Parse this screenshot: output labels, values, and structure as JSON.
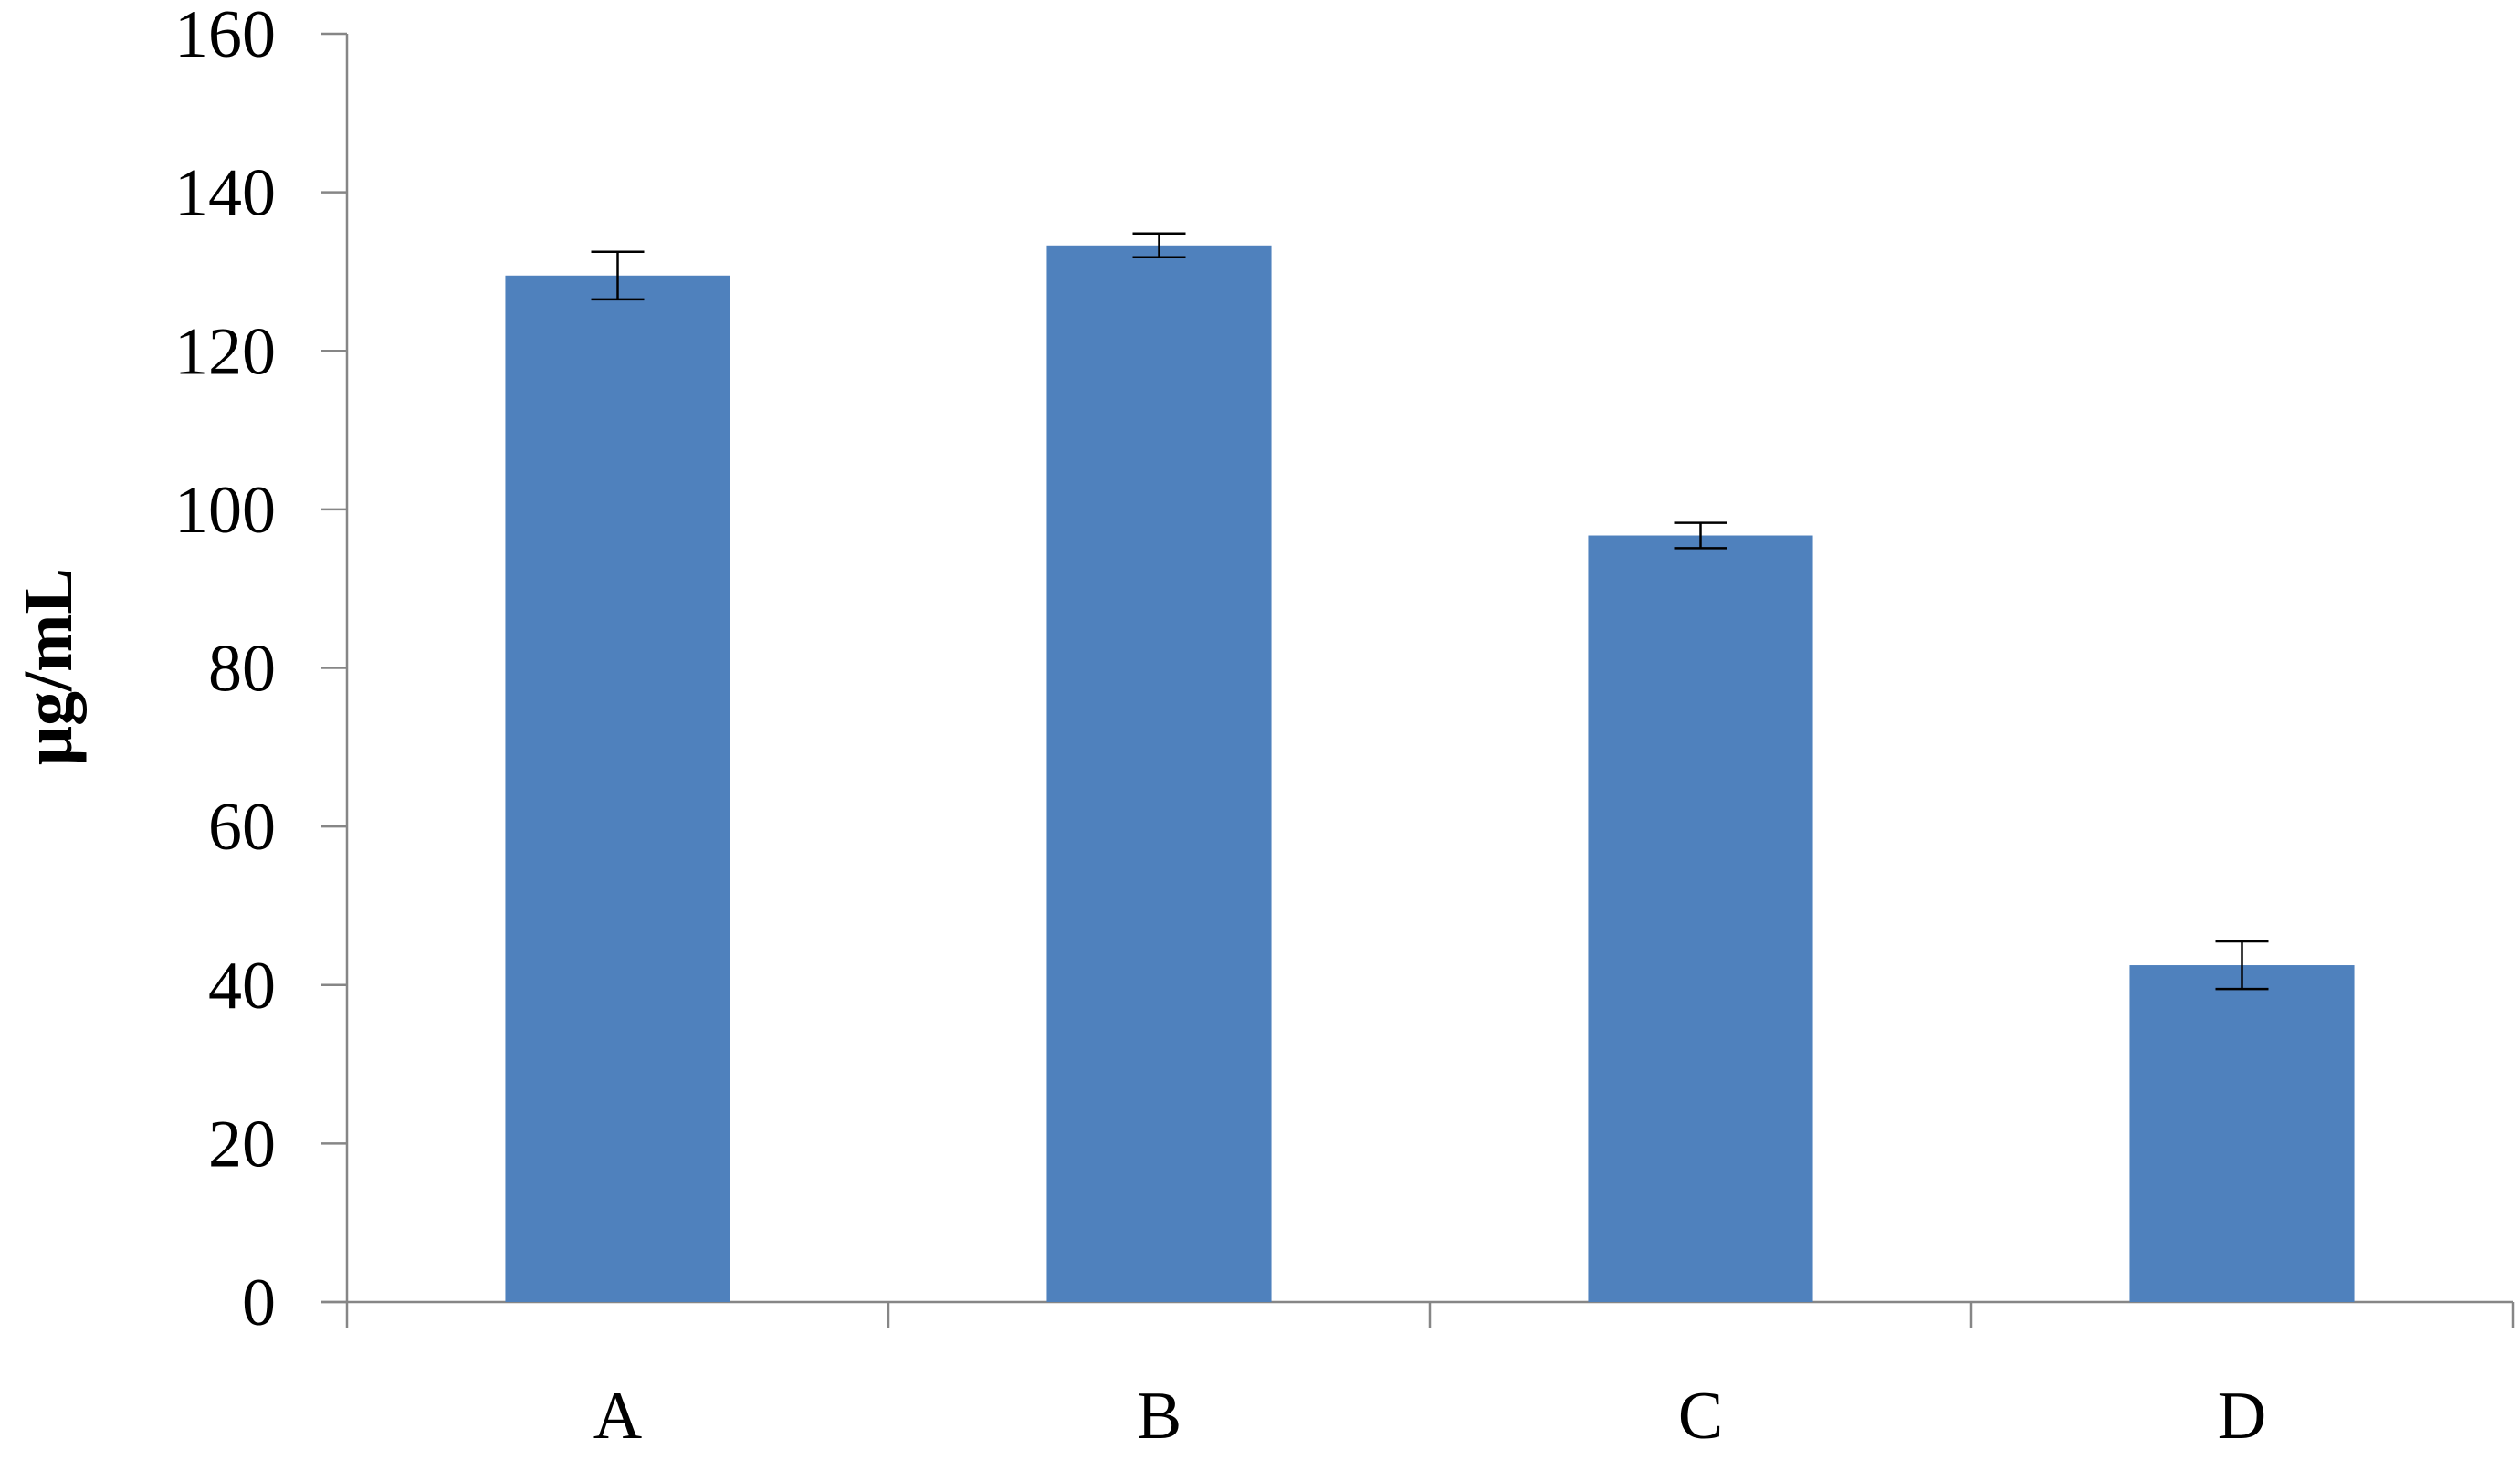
{
  "chart_data": {
    "type": "bar",
    "title": "",
    "xlabel": "",
    "ylabel": "μg/mL",
    "categories": [
      "A",
      "B",
      "C",
      "D"
    ],
    "values": [
      129.5,
      133.3,
      96.7,
      42.5
    ],
    "error": [
      3.0,
      1.5,
      1.6,
      3.0
    ],
    "ylim": [
      0,
      160
    ],
    "yticks": [
      0,
      20,
      40,
      60,
      80,
      100,
      120,
      140,
      160
    ],
    "bar_color": "#4F81BD",
    "error_color": "#000000",
    "axis_color": "#868686",
    "grid": false,
    "legend": "none"
  }
}
